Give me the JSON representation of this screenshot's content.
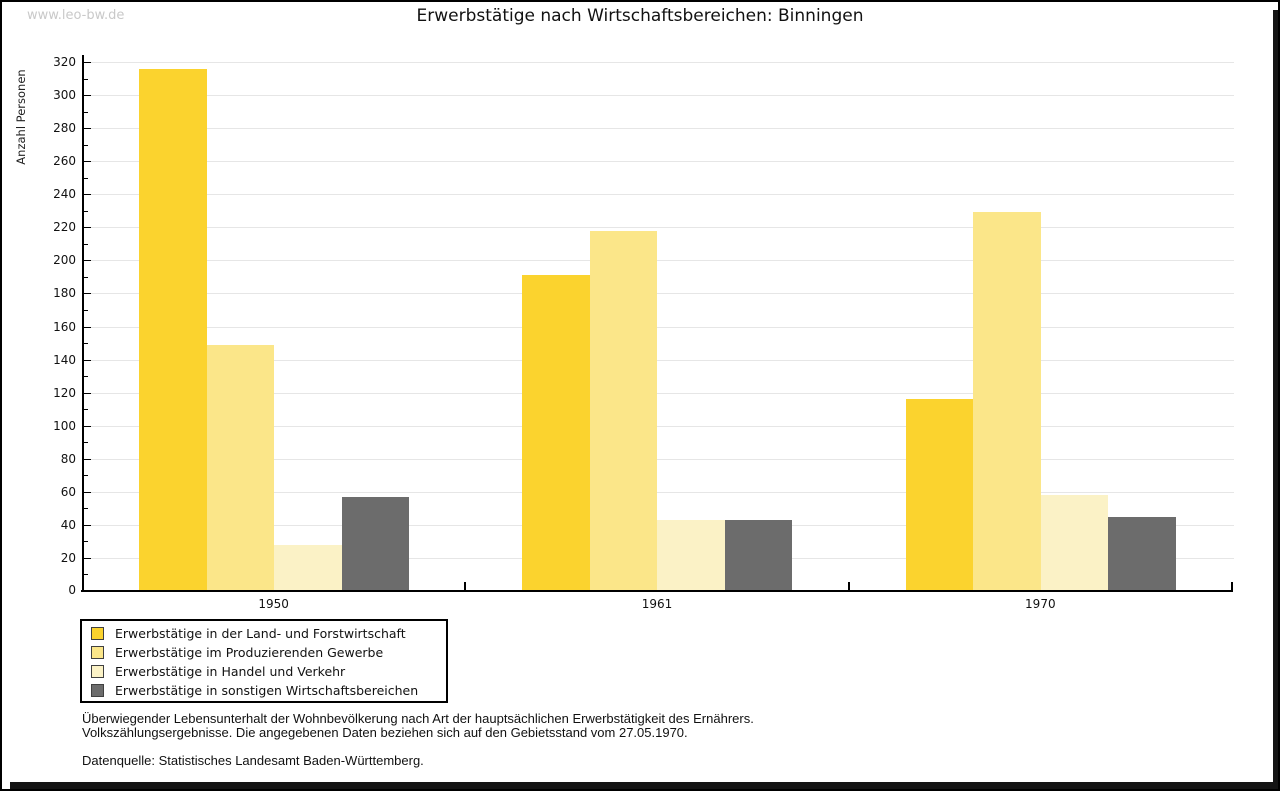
{
  "watermark": "www.leo-bw.de",
  "title": "Erwerbstätige nach Wirtschaftsbereichen: Binningen",
  "chart_data": {
    "type": "bar",
    "title": "Erwerbstätige nach Wirtschaftsbereichen: Binningen",
    "ylabel": "Anzahl Personen",
    "xlabel": "",
    "categories": [
      "1950",
      "1961",
      "1970"
    ],
    "series": [
      {
        "name": "Erwerbstätige in der Land- und Forstwirtschaft",
        "color": "#FBD32E",
        "values": [
          316,
          191,
          116
        ]
      },
      {
        "name": "Erwerbstätige im Produzierenden Gewerbe",
        "color": "#FBE689",
        "values": [
          149,
          218,
          229
        ]
      },
      {
        "name": "Erwerbstätige in Handel und Verkehr",
        "color": "#FBF2C6",
        "values": [
          28,
          43,
          58
        ]
      },
      {
        "name": "Erwerbstätige in sonstigen Wirtschaftsbereichen",
        "color": "#6C6C6C",
        "values": [
          57,
          43,
          45
        ]
      }
    ],
    "ylim": [
      0,
      320
    ],
    "ytick_step": 20,
    "minor_tick_step": 10,
    "grid": true,
    "gridline_color": "#e6e6e6",
    "legend_position": "bottom-left"
  },
  "footnotes": {
    "line1": "Überwiegender Lebensunterhalt der Wohnbevölkerung nach Art der hauptsächlichen Erwerbstätigkeit des Ernährers.",
    "line2": "Volkszählungsergebnisse. Die angegebenen Daten beziehen sich auf den Gebietsstand vom 27.05.1970.",
    "source": "Datenquelle: Statistisches Landesamt Baden-Württemberg."
  }
}
